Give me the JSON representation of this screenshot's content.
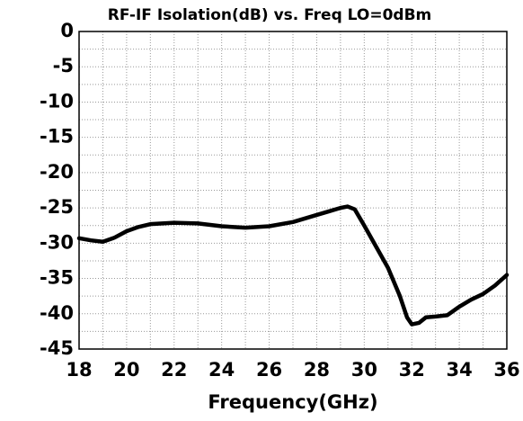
{
  "chart_data": {
    "type": "line",
    "title": "RF-IF Isolation(dB) vs. Freq  LO=0dBm",
    "xlabel": "Frequency(GHz)",
    "x": [
      18,
      18.5,
      19,
      19.5,
      20,
      20.5,
      21,
      22,
      23,
      24,
      25,
      26,
      27,
      28,
      28.5,
      29,
      29.3,
      29.6,
      30,
      30.5,
      31,
      31.5,
      31.8,
      32,
      32.3,
      32.6,
      33,
      33.5,
      34,
      34.5,
      35,
      35.5,
      36
    ],
    "series": [
      {
        "name": "RF-IF Isolation",
        "color": "#000000",
        "values": [
          -29.3,
          -29.6,
          -29.8,
          -29.2,
          -28.3,
          -27.7,
          -27.3,
          -27.1,
          -27.2,
          -27.6,
          -27.8,
          -27.6,
          -27.0,
          -26.0,
          -25.5,
          -25.0,
          -24.8,
          -25.2,
          -27.5,
          -30.5,
          -33.5,
          -37.5,
          -40.5,
          -41.5,
          -41.3,
          -40.5,
          -40.4,
          -40.2,
          -39.0,
          -38.0,
          -37.2,
          -36.0,
          -34.5
        ]
      }
    ],
    "xlim": [
      18,
      36
    ],
    "xticks": [
      18,
      20,
      22,
      24,
      26,
      28,
      30,
      32,
      34,
      36
    ],
    "ylim": [
      -45,
      0
    ],
    "yticks": [
      0,
      -5,
      -10,
      -15,
      -20,
      -25,
      -30,
      -35,
      -40,
      -45
    ],
    "grid": true
  }
}
